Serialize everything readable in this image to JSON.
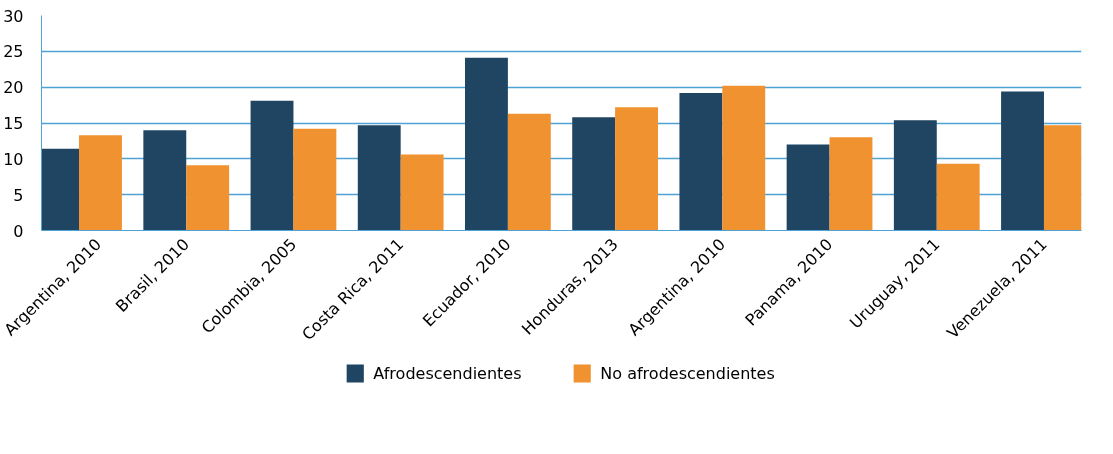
{
  "chart_data": {
    "type": "bar",
    "categories": [
      "Argentina, 2010",
      "Brasil, 2010",
      "Colombia, 2005",
      "Costa Rica, 2011",
      "Ecuador, 2010",
      "Honduras, 2013",
      "Argentina, 2010",
      "Panama, 2010",
      "Uruguay, 2011",
      "Venezuela, 2011"
    ],
    "series": [
      {
        "name": "Afrodescendientes",
        "color": "#1f4562",
        "values": [
          11.4,
          14.0,
          18.1,
          14.7,
          24.1,
          15.8,
          19.2,
          12.0,
          15.4,
          19.4
        ]
      },
      {
        "name": "No afrodescendientes",
        "color": "#f0922f",
        "values": [
          13.3,
          9.1,
          14.2,
          10.6,
          16.3,
          17.2,
          20.2,
          13.0,
          9.3,
          14.7
        ]
      }
    ],
    "ylim": [
      0,
      30
    ],
    "yticks": [
      0,
      5,
      10,
      15,
      20,
      25,
      30
    ],
    "grid": "y",
    "legend": "bottom"
  }
}
